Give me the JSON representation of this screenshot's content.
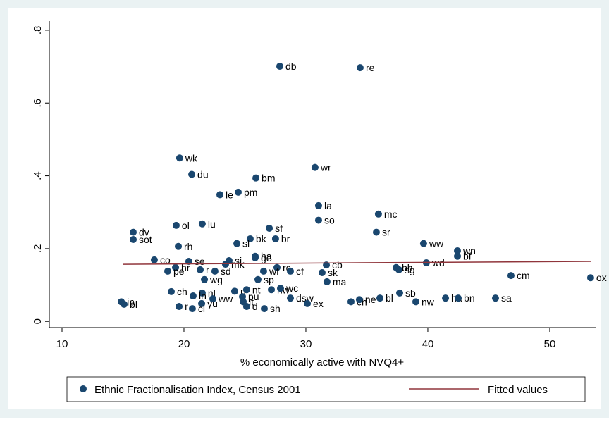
{
  "chart_data": {
    "type": "scatter",
    "x_label": "% economically active with NVQ4+",
    "xlim": [
      8.96,
      53.76
    ],
    "ylim": [
      -0.017,
      0.825
    ],
    "xticks": [
      10,
      20,
      30,
      40,
      50
    ],
    "yticks": [
      0,
      {
        "value": 0.2,
        "label": ".2"
      },
      {
        "value": 0.4,
        "label": ".4"
      },
      {
        "value": 0.6,
        "label": ".6"
      },
      {
        "value": 0.8,
        "label": ".8"
      }
    ],
    "grid": false,
    "series": [
      {
        "name": "Ethnic Fractionalisation Index, Census 2001",
        "type": "scatter",
        "color": "#1a476f",
        "labels": [
          "db",
          "re",
          "wk",
          "du",
          "bm",
          "wr",
          "pm",
          "le",
          "la",
          "mc",
          "so",
          "ol",
          "lu",
          "sf",
          "sr",
          "dv",
          "sot",
          "bk",
          "br",
          "sl",
          "ww",
          "rh",
          "wn",
          "bf",
          "ha",
          "ge",
          "co",
          "sj",
          "se",
          "wd",
          "cb",
          "mk",
          "hr",
          "rc",
          "bh",
          "sg",
          "pe",
          "r",
          "sd",
          "wf",
          "cf",
          "sk",
          "cm",
          "ox",
          "wg",
          "sp",
          "ma",
          "ch",
          "nl",
          "ri",
          "hw",
          "wc",
          "nt",
          "pu",
          "ww",
          "yu",
          "lt",
          "cl",
          "r",
          "d",
          "sh",
          "dsw",
          "ex",
          "ch",
          "ne",
          "bl",
          "sb",
          "nw",
          "ha",
          "bn",
          "sa",
          "ip",
          "bl",
          "ln"
        ],
        "x": [
          27.86,
          34.45,
          19.65,
          20.64,
          25.9,
          30.75,
          24.45,
          22.95,
          31.04,
          35.95,
          31.04,
          19.36,
          21.5,
          27.0,
          35.78,
          15.84,
          15.84,
          25.43,
          27.51,
          24.34,
          39.65,
          19.54,
          42.43,
          42.43,
          25.84,
          25.84,
          17.57,
          23.7,
          20.4,
          39.88,
          31.68,
          23.41,
          19.31,
          27.63,
          37.4,
          37.63,
          18.67,
          21.33,
          22.54,
          26.53,
          28.73,
          31.33,
          46.82,
          53.35,
          21.68,
          26.07,
          31.73,
          18.96,
          21.5,
          24.16,
          27.17,
          27.92,
          25.14,
          24.8,
          22.37,
          21.45,
          24.86,
          20.69,
          19.6,
          25.14,
          26.59,
          28.73,
          30.12,
          33.7,
          34.39,
          36.07,
          37.69,
          39.02,
          41.45,
          42.49,
          45.55,
          14.86,
          15.09,
          20.75
        ],
        "values": [
          0.701,
          0.697,
          0.449,
          0.404,
          0.394,
          0.423,
          0.355,
          0.348,
          0.318,
          0.295,
          0.278,
          0.264,
          0.268,
          0.256,
          0.245,
          0.245,
          0.225,
          0.227,
          0.227,
          0.214,
          0.214,
          0.206,
          0.194,
          0.179,
          0.179,
          0.175,
          0.169,
          0.167,
          0.165,
          0.161,
          0.155,
          0.157,
          0.148,
          0.148,
          0.148,
          0.142,
          0.138,
          0.142,
          0.138,
          0.138,
          0.138,
          0.134,
          0.126,
          0.12,
          0.115,
          0.115,
          0.109,
          0.082,
          0.078,
          0.083,
          0.087,
          0.091,
          0.087,
          0.068,
          0.062,
          0.049,
          0.054,
          0.035,
          0.041,
          0.041,
          0.035,
          0.064,
          0.049,
          0.054,
          0.06,
          0.064,
          0.078,
          0.054,
          0.064,
          0.064,
          0.064,
          0.054,
          0.047,
          0.07
        ]
      },
      {
        "name": "Fitted values",
        "type": "line",
        "color": "#90353b",
        "x": [
          15.0,
          53.4
        ],
        "values": [
          0.157,
          0.165
        ]
      }
    ]
  }
}
